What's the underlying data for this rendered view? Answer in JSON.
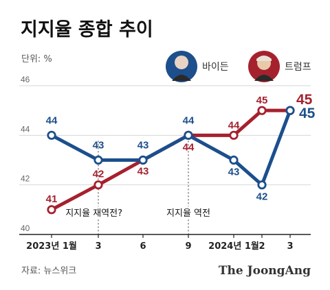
{
  "title": "지지율 종합 추이",
  "unit_label": "단위: %",
  "source": "자료: 뉴스위크",
  "brand": "The JoongAng",
  "colors": {
    "biden": "#1c4f8c",
    "trump": "#a5212e",
    "grid": "#d6d6d6",
    "axis": "#222222"
  },
  "chart_data": {
    "type": "line",
    "x": [
      "2023년 1월",
      "3",
      "6",
      "9",
      "2024년 1월",
      "2",
      "3"
    ],
    "ylim": [
      40,
      46
    ],
    "yticks": [
      40,
      42,
      44,
      46
    ],
    "grid": true,
    "legend_position": "top-right",
    "series": [
      {
        "name": "바이든",
        "key": "biden",
        "icon": "biden-portrait-icon",
        "values": [
          44,
          43,
          43,
          44,
          43,
          42,
          45
        ]
      },
      {
        "name": "트럼프",
        "key": "trump",
        "icon": "trump-portrait-icon",
        "values": [
          41,
          42,
          43,
          44,
          44,
          45,
          45
        ]
      }
    ],
    "annotations": [
      {
        "text": "지지율 역전",
        "x": "9"
      },
      {
        "text": "지지율 재역전?",
        "x": "3"
      }
    ]
  }
}
